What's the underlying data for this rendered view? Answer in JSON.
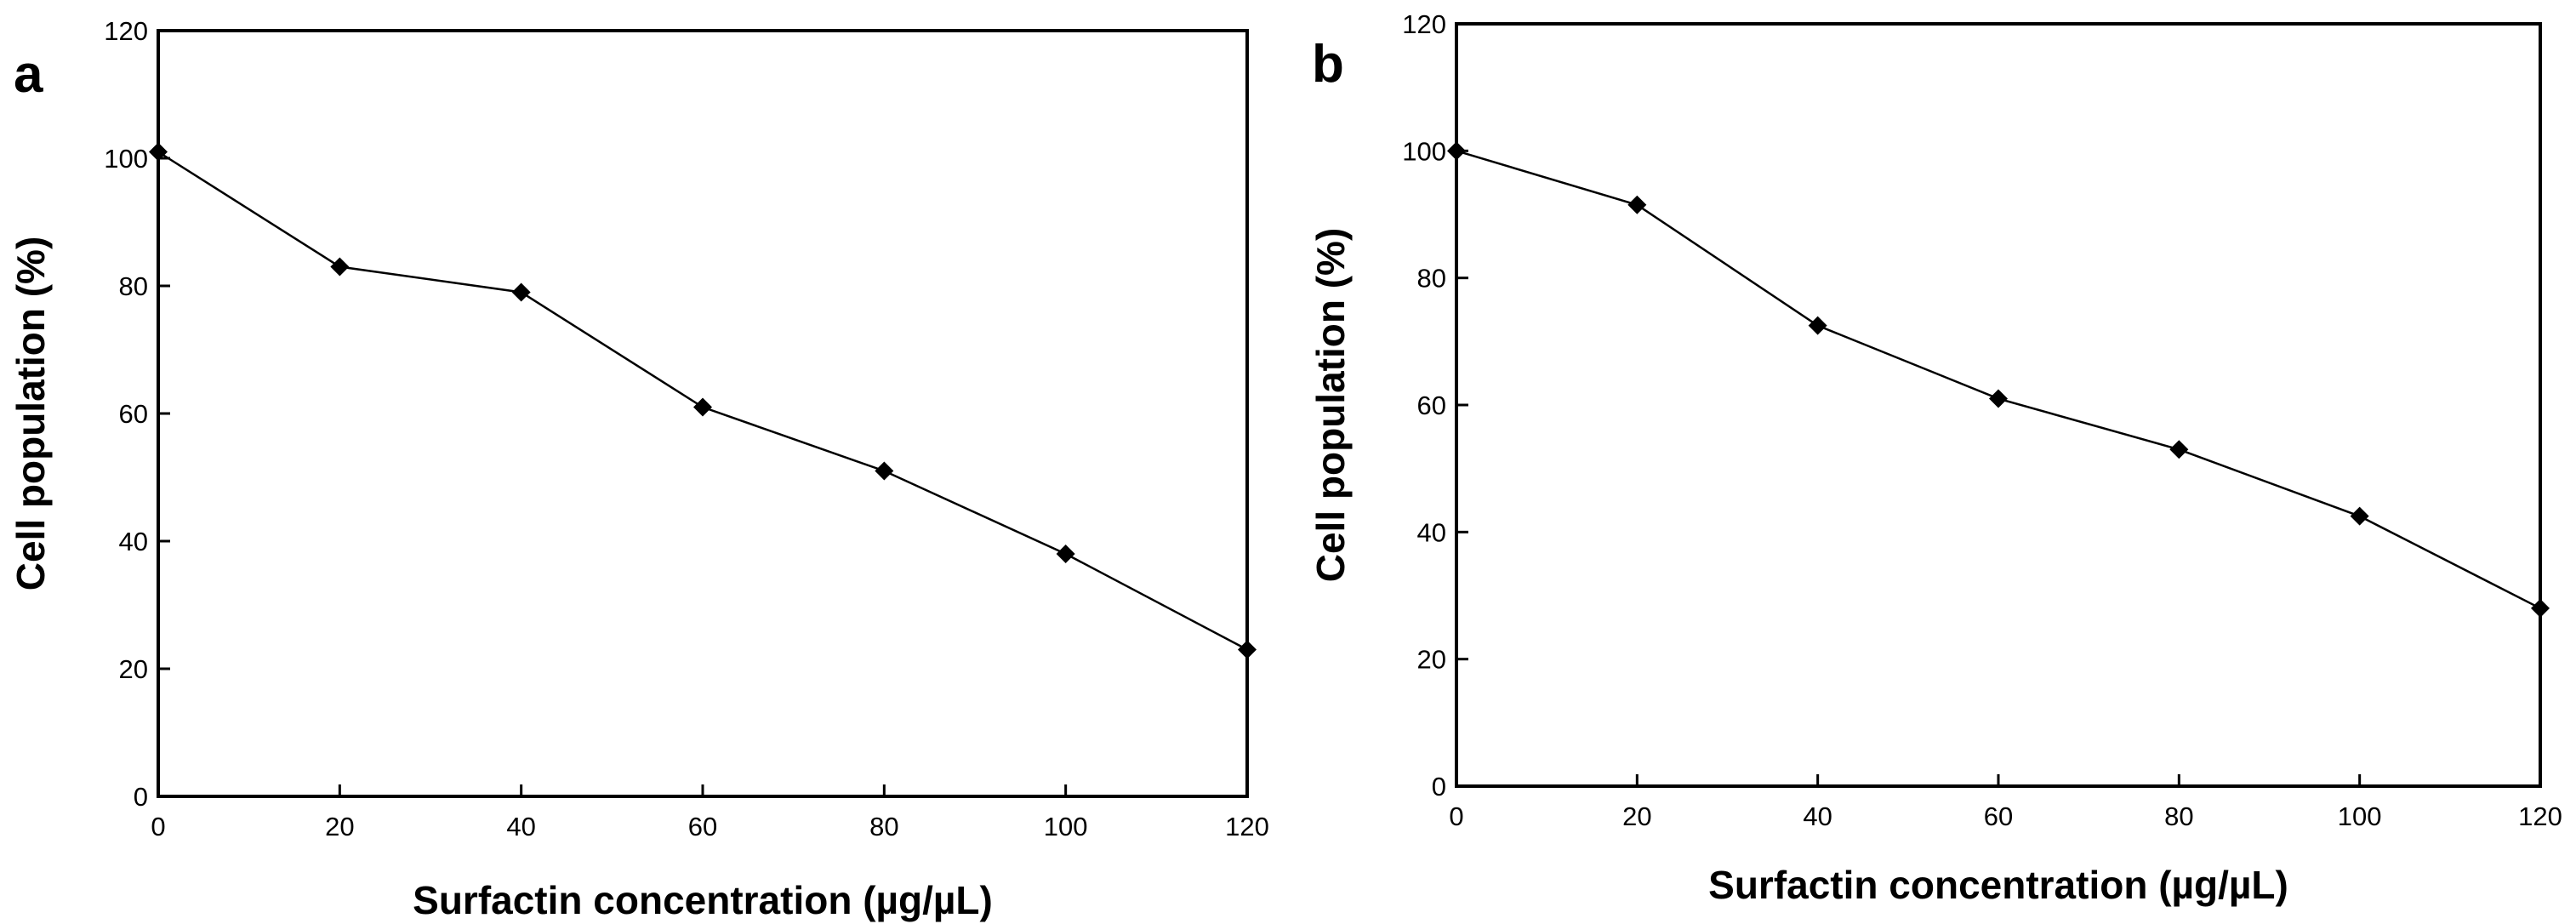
{
  "chart_data": [
    {
      "panel": "a",
      "type": "line",
      "x": [
        0,
        20,
        40,
        60,
        80,
        100,
        120
      ],
      "series": [
        {
          "name": "Cell population",
          "values": [
            101,
            83,
            79,
            61,
            51,
            38,
            23
          ]
        }
      ],
      "xlabel": "Surfactin concentration (µg/µL)",
      "ylabel": "Cell population (%)",
      "xlim": [
        0,
        120
      ],
      "ylim": [
        0,
        120
      ],
      "xticks": [
        "0",
        "20",
        "40",
        "60",
        "80",
        "100",
        "120"
      ],
      "yticks": [
        "0",
        "20",
        "40",
        "60",
        "80",
        "100",
        "120"
      ],
      "grid": false,
      "marker": "diamond"
    },
    {
      "panel": "b",
      "type": "line",
      "x": [
        0,
        20,
        40,
        60,
        80,
        100,
        120
      ],
      "series": [
        {
          "name": "Cell population",
          "values": [
            100,
            91.5,
            72.5,
            61,
            53,
            42.5,
            28
          ]
        }
      ],
      "xlabel": "Surfactin concentration (µg/µL)",
      "ylabel": "Cell population (%)",
      "xlim": [
        0,
        120
      ],
      "ylim": [
        0,
        120
      ],
      "xticks": [
        "0",
        "20",
        "40",
        "60",
        "80",
        "100",
        "120"
      ],
      "yticks": [
        "0",
        "20",
        "40",
        "60",
        "80",
        "100",
        "120"
      ],
      "grid": false,
      "marker": "diamond"
    }
  ]
}
